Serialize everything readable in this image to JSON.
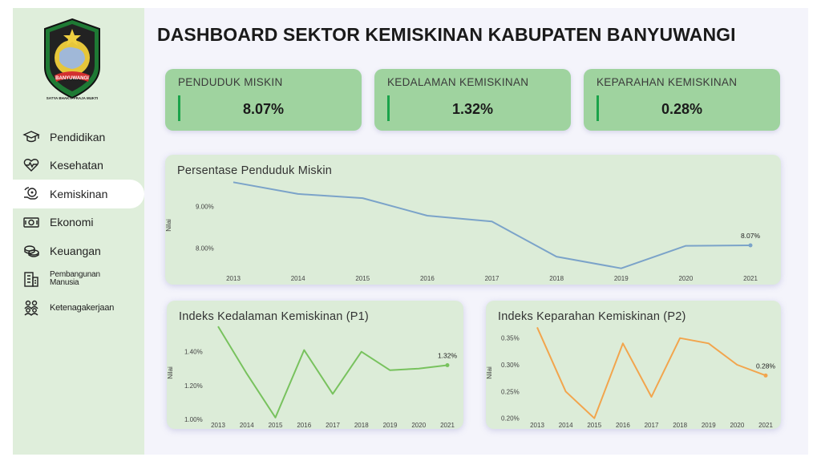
{
  "header": {
    "title": "DASHBOARD SEKTOR KEMISKINAN KABUPATEN BANYUWANGI"
  },
  "logo": {
    "ribbon_text": "BANYUWANGI",
    "motto": "SATYA BHAKTI PRAJA MUKTI"
  },
  "sidebar": {
    "items": [
      {
        "label": "Pendidikan",
        "icon": "graduation-cap-icon",
        "active": false
      },
      {
        "label": "Kesehatan",
        "icon": "heart-pulse-icon",
        "active": false
      },
      {
        "label": "Kemiskinan",
        "icon": "hand-coin-icon",
        "active": true
      },
      {
        "label": "Ekonomi",
        "icon": "money-bill-icon",
        "active": false
      },
      {
        "label": "Keuangan",
        "icon": "coins-icon",
        "active": false
      },
      {
        "label": "Pembangunan Manusia",
        "icon": "building-icon",
        "active": false
      },
      {
        "label": "Ketenagakerjaan",
        "icon": "people-group-icon",
        "active": false
      }
    ]
  },
  "kpis": [
    {
      "label": "PENDUDUK MISKIN",
      "value": "8.07%"
    },
    {
      "label": "KEDALAMAN KEMISKINAN",
      "value": "1.32%"
    },
    {
      "label": "KEPARAHAN KEMISKINAN",
      "value": "0.28%"
    }
  ],
  "colors": {
    "accent_green": "#9fd39f",
    "line_blue": "#7ba3c9",
    "line_green": "#78c25e",
    "line_orange": "#f2a54d"
  },
  "chart_data": [
    {
      "type": "line",
      "title": "Persentase Penduduk Miskin",
      "ylabel": "Nilai",
      "x": [
        "2013",
        "2014",
        "2015",
        "2016",
        "2017",
        "2018",
        "2019",
        "2020",
        "2021"
      ],
      "series": [
        {
          "values": [
            9.58,
            9.3,
            9.2,
            8.78,
            8.64,
            7.8,
            7.52,
            8.06,
            8.07
          ]
        }
      ],
      "yticks": [
        "9.00%",
        "8.00%"
      ],
      "ytick_values": [
        9.0,
        8.0
      ],
      "ylim": [
        7.4,
        9.7
      ],
      "last_label": "8.07%",
      "color": "#7ba3c9"
    },
    {
      "type": "line",
      "title": "Indeks Kedalaman Kemiskinan (P1)",
      "ylabel": "Nilai",
      "x": [
        "2013",
        "2014",
        "2015",
        "2016",
        "2017",
        "2018",
        "2019",
        "2020",
        "2021"
      ],
      "series": [
        {
          "values": [
            1.55,
            1.27,
            1.01,
            1.41,
            1.15,
            1.4,
            1.29,
            1.3,
            1.32
          ]
        }
      ],
      "yticks": [
        "1.40%",
        "1.20%",
        "1.00%"
      ],
      "ytick_values": [
        1.4,
        1.2,
        1.0
      ],
      "ylim": [
        0.99,
        1.56
      ],
      "last_label": "1.32%",
      "color": "#78c25e"
    },
    {
      "type": "line",
      "title": "Indeks Keparahan Kemiskinan (P2)",
      "ylabel": "Nilai",
      "x": [
        "2013",
        "2014",
        "2015",
        "2016",
        "2017",
        "2018",
        "2019",
        "2020",
        "2021"
      ],
      "series": [
        {
          "values": [
            0.37,
            0.25,
            0.2,
            0.34,
            0.24,
            0.35,
            0.34,
            0.3,
            0.28
          ]
        }
      ],
      "yticks": [
        "0.35%",
        "0.30%",
        "0.25%",
        "0.20%"
      ],
      "ytick_values": [
        0.35,
        0.3,
        0.25,
        0.2
      ],
      "ylim": [
        0.195,
        0.375
      ],
      "last_label": "0.28%",
      "color": "#f2a54d"
    }
  ]
}
